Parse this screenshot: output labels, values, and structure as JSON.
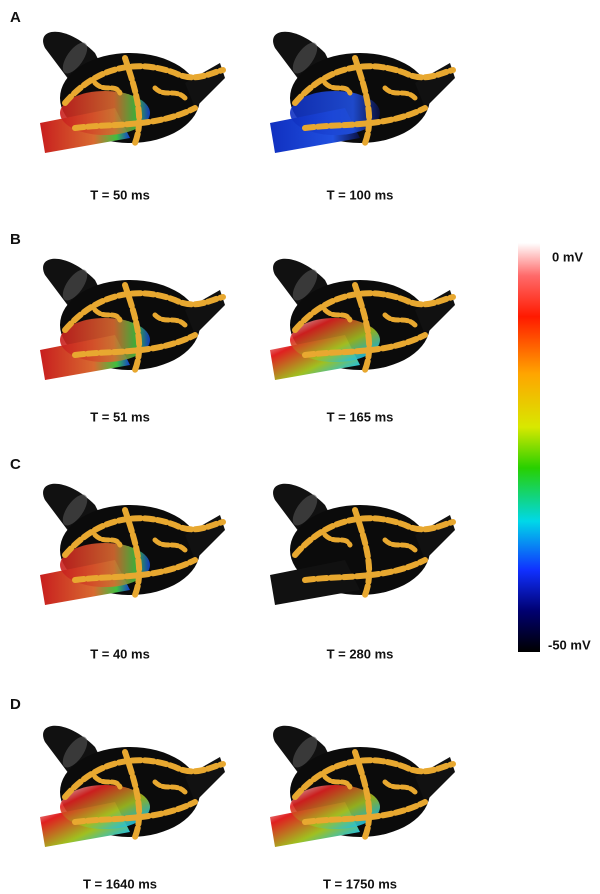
{
  "panels": [
    {
      "label": "A",
      "frames": [
        {
          "caption": "T = 50 ms"
        },
        {
          "caption": "T = 100 ms"
        }
      ]
    },
    {
      "label": "B",
      "frames": [
        {
          "caption": "T = 51 ms"
        },
        {
          "caption": "T = 165 ms"
        }
      ]
    },
    {
      "label": "C",
      "frames": [
        {
          "caption": "T = 40 ms"
        },
        {
          "caption": "T = 280 ms"
        }
      ]
    },
    {
      "label": "D",
      "frames": [
        {
          "caption": "T = 1640 ms"
        },
        {
          "caption": "T = 1750 ms"
        }
      ]
    }
  ],
  "colorbar": {
    "max_label": "0 mV",
    "min_label": "-50 mV"
  }
}
